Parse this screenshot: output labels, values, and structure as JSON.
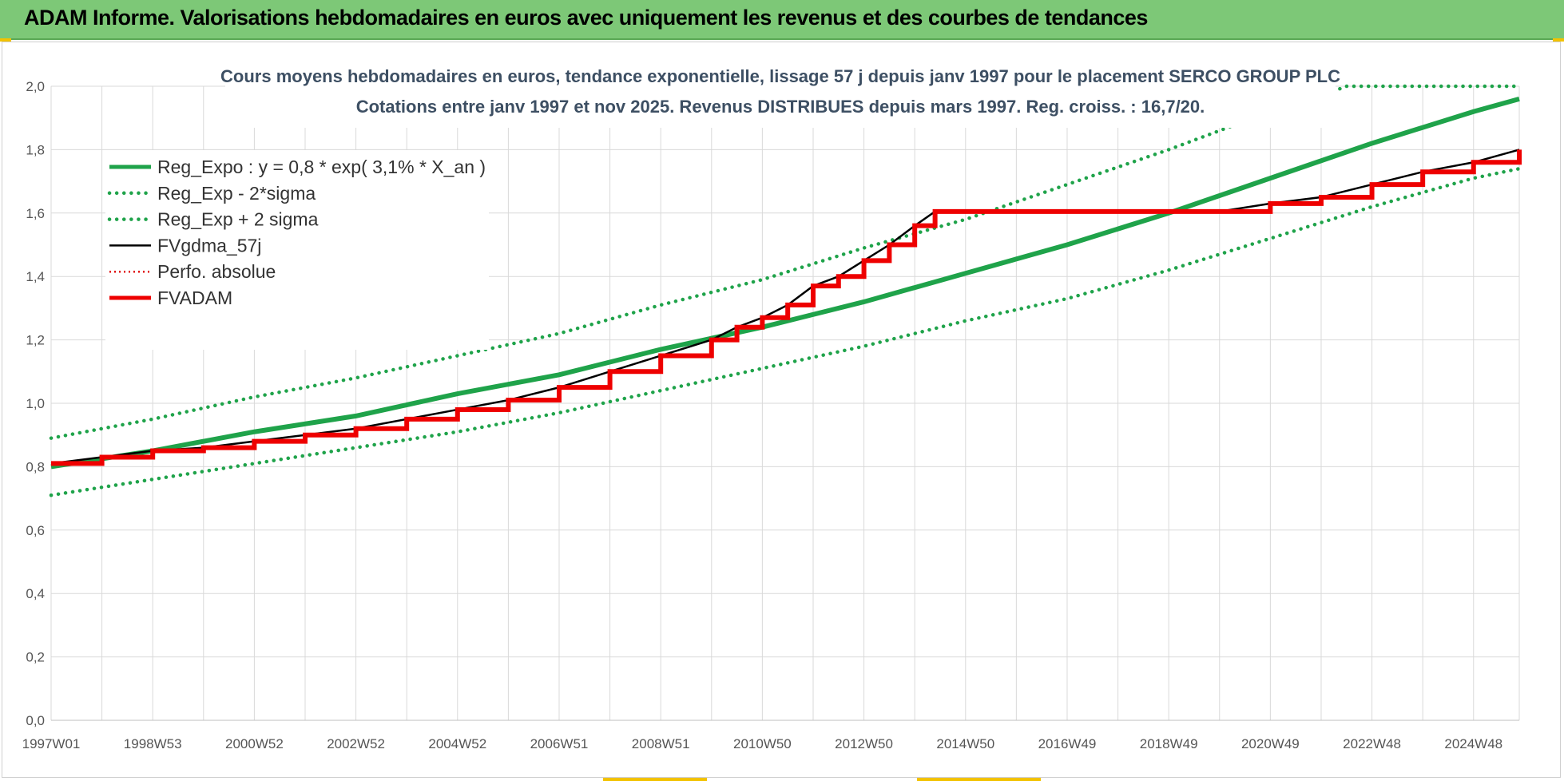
{
  "header": {
    "title": "ADAM Informe. Valorisations hebdomadaires en euros avec uniquement les revenus et des courbes de tendances"
  },
  "colors": {
    "header_bg": "#7dc877",
    "reg_expo": "#1fa34a",
    "reg_bands": "#1fa34a",
    "fvgdma": "#000000",
    "perfo": "#e00000",
    "fvadam": "#ee0000",
    "grid": "#d9d9d9"
  },
  "chart_data": {
    "type": "line",
    "title_line1": "Cours moyens hebdomadaires en euros, tendance exponentielle, lissage 57 j depuis janv 1997 pour le placement SERCO GROUP PLC",
    "title_line2": "Cotations entre janv 1997 et nov 2025. Revenus DISTRIBUES depuis mars 1997. Reg. croiss. : 16,7/20.",
    "xlabel": "",
    "ylabel": "",
    "ylim": [
      0,
      2.0
    ],
    "xlim": [
      1997.0,
      2025.9
    ],
    "grid": true,
    "legend_position": "top-left",
    "y_ticks": [
      "0,0",
      "0,2",
      "0,4",
      "0,6",
      "0,8",
      "1,0",
      "1,2",
      "1,4",
      "1,6",
      "1,8",
      "2,0"
    ],
    "x_tick_labels": [
      "1997W01",
      "1998W53",
      "2000W52",
      "2002W52",
      "2004W52",
      "2006W51",
      "2008W51",
      "2010W50",
      "2012W50",
      "2014W50",
      "2016W49",
      "2018W49",
      "2020W49",
      "2022W48",
      "2024W48"
    ],
    "x_tick_years": [
      1997.0,
      1999.0,
      2001.0,
      2003.0,
      2005.0,
      2007.0,
      2009.0,
      2011.0,
      2013.0,
      2015.0,
      2017.0,
      2019.0,
      2021.0,
      2023.0,
      2025.0
    ],
    "series": [
      {
        "name": "Reg_Expo : y = 0,8 * exp( 3,1% *  X_an )",
        "style": "solid-thick",
        "x": [
          1997.0,
          1999.0,
          2001.0,
          2003.0,
          2005.0,
          2007.0,
          2009.0,
          2011.0,
          2013.0,
          2015.0,
          2017.0,
          2019.0,
          2021.0,
          2023.0,
          2025.0,
          2025.9
        ],
        "y": [
          0.8,
          0.85,
          0.91,
          0.96,
          1.03,
          1.09,
          1.17,
          1.24,
          1.32,
          1.41,
          1.5,
          1.6,
          1.71,
          1.82,
          1.92,
          1.96
        ]
      },
      {
        "name": "Reg_Exp - 2*sigma",
        "style": "dotted",
        "x": [
          1997.0,
          1999.0,
          2001.0,
          2003.0,
          2005.0,
          2007.0,
          2009.0,
          2011.0,
          2013.0,
          2015.0,
          2017.0,
          2019.0,
          2021.0,
          2023.0,
          2025.0,
          2025.9
        ],
        "y": [
          0.71,
          0.76,
          0.81,
          0.86,
          0.91,
          0.97,
          1.04,
          1.11,
          1.18,
          1.26,
          1.33,
          1.42,
          1.52,
          1.62,
          1.71,
          1.74
        ]
      },
      {
        "name": "Reg_Exp + 2 sigma",
        "style": "dotted",
        "x": [
          1997.0,
          1999.0,
          2001.0,
          2003.0,
          2005.0,
          2007.0,
          2009.0,
          2011.0,
          2013.0,
          2015.0,
          2017.0,
          2019.0,
          2021.0,
          2022.0,
          2022.5,
          2025.9
        ],
        "y": [
          0.89,
          0.95,
          1.02,
          1.08,
          1.15,
          1.22,
          1.31,
          1.39,
          1.49,
          1.58,
          1.69,
          1.8,
          1.92,
          1.97,
          2.0,
          2.0
        ]
      },
      {
        "name": "FVgdma_57j",
        "style": "solid-thin",
        "x": [
          1997.0,
          1998.0,
          1999.0,
          2000.0,
          2001.0,
          2002.0,
          2003.0,
          2004.0,
          2005.0,
          2006.0,
          2007.0,
          2008.0,
          2009.0,
          2010.0,
          2010.5,
          2011.0,
          2011.5,
          2012.0,
          2012.5,
          2013.0,
          2013.5,
          2014.0,
          2014.4,
          2020.0,
          2021.0,
          2022.0,
          2023.0,
          2024.0,
          2025.0,
          2025.9
        ],
        "y": [
          0.81,
          0.83,
          0.85,
          0.86,
          0.88,
          0.9,
          0.92,
          0.95,
          0.98,
          1.01,
          1.05,
          1.1,
          1.15,
          1.2,
          1.24,
          1.27,
          1.31,
          1.37,
          1.4,
          1.45,
          1.5,
          1.56,
          1.605,
          1.605,
          1.63,
          1.65,
          1.69,
          1.73,
          1.76,
          1.8
        ]
      },
      {
        "name": "Perfo. absolue",
        "style": "dotted-red",
        "x": [
          1997.0,
          1998.0,
          1999.0,
          2000.0,
          2001.0,
          2002.0,
          2003.0,
          2004.0,
          2005.0,
          2006.0,
          2007.0,
          2008.0,
          2009.0,
          2010.0,
          2010.5,
          2011.0,
          2011.5,
          2012.0,
          2012.5,
          2013.0,
          2013.5,
          2014.0,
          2014.4,
          2020.0,
          2021.0,
          2022.0,
          2023.0,
          2024.0,
          2025.0,
          2025.9
        ],
        "y": [
          0.81,
          0.83,
          0.85,
          0.86,
          0.88,
          0.9,
          0.92,
          0.95,
          0.98,
          1.01,
          1.05,
          1.1,
          1.15,
          1.2,
          1.24,
          1.27,
          1.31,
          1.37,
          1.4,
          1.45,
          1.5,
          1.56,
          1.605,
          1.605,
          1.63,
          1.65,
          1.69,
          1.73,
          1.76,
          1.8
        ]
      },
      {
        "name": "FVADAM",
        "style": "step-thick",
        "x": [
          1997.0,
          1998.0,
          1999.0,
          2000.0,
          2001.0,
          2002.0,
          2003.0,
          2004.0,
          2005.0,
          2006.0,
          2007.0,
          2008.0,
          2009.0,
          2010.0,
          2010.5,
          2011.0,
          2011.5,
          2012.0,
          2012.5,
          2013.0,
          2013.5,
          2014.0,
          2014.4,
          2020.0,
          2021.0,
          2022.0,
          2023.0,
          2024.0,
          2025.0,
          2025.9
        ],
        "y": [
          0.81,
          0.83,
          0.85,
          0.86,
          0.88,
          0.9,
          0.92,
          0.95,
          0.98,
          1.01,
          1.05,
          1.1,
          1.15,
          1.2,
          1.24,
          1.27,
          1.31,
          1.37,
          1.4,
          1.45,
          1.5,
          1.56,
          1.605,
          1.605,
          1.63,
          1.65,
          1.69,
          1.73,
          1.76,
          1.8
        ]
      }
    ]
  }
}
